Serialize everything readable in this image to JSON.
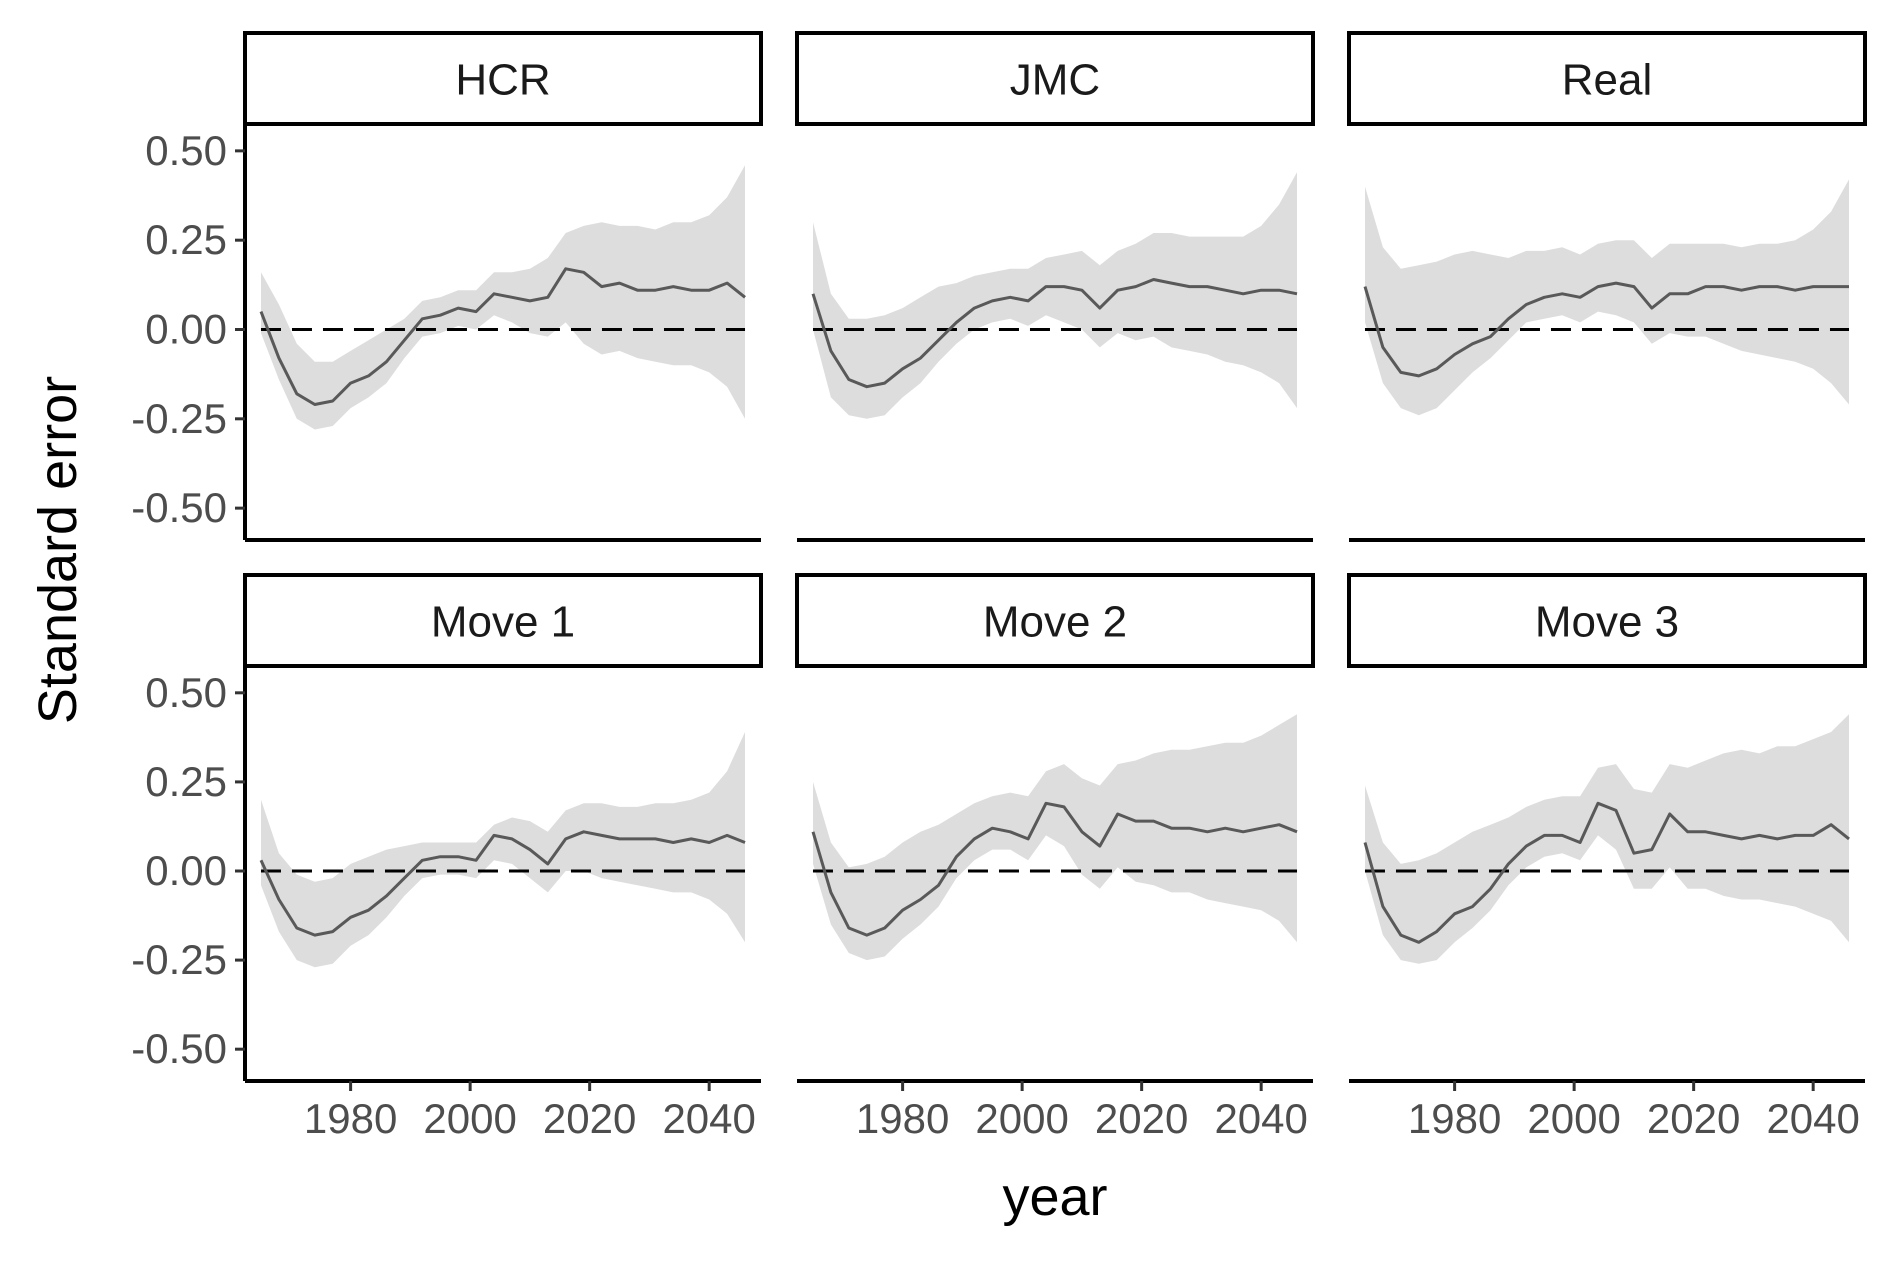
{
  "chart_data": {
    "type": "line",
    "xlabel": "year",
    "ylabel": "Standard error",
    "xlim": [
      1964,
      2047
    ],
    "ylim": [
      -0.55,
      0.55
    ],
    "x_ticks": [
      1980,
      2000,
      2020,
      2040
    ],
    "x_tick_labels": [
      "1980",
      "2000",
      "2020",
      "2040"
    ],
    "y_ticks": [
      0.5,
      0.25,
      0,
      -0.25,
      -0.5
    ],
    "y_tick_labels": [
      "0.50",
      "0.25",
      "0.00",
      "-0.25",
      "-0.50"
    ],
    "reference_line": {
      "y": 0,
      "style": "dashed"
    },
    "grid": false,
    "colors": {
      "line": "#595959",
      "band": "#dddddd",
      "reference": "#000000"
    },
    "facets": [
      {
        "name": "HCR",
        "x": [
          1965,
          1968,
          1971,
          1974,
          1977,
          1980,
          1983,
          1986,
          1989,
          1992,
          1995,
          1998,
          2001,
          2004,
          2007,
          2010,
          2013,
          2016,
          2019,
          2022,
          2025,
          2028,
          2031,
          2034,
          2037,
          2040,
          2043,
          2046
        ],
        "mean": [
          0.05,
          -0.08,
          -0.18,
          -0.21,
          -0.2,
          -0.15,
          -0.13,
          -0.09,
          -0.03,
          0.03,
          0.04,
          0.06,
          0.05,
          0.1,
          0.09,
          0.08,
          0.09,
          0.17,
          0.16,
          0.12,
          0.13,
          0.11,
          0.11,
          0.12,
          0.11,
          0.11,
          0.13,
          0.09
        ],
        "lower": [
          -0.01,
          -0.14,
          -0.25,
          -0.28,
          -0.27,
          -0.22,
          -0.19,
          -0.15,
          -0.08,
          -0.02,
          -0.01,
          0.01,
          0,
          0.04,
          0.02,
          -0.01,
          -0.02,
          0.02,
          -0.04,
          -0.07,
          -0.06,
          -0.08,
          -0.09,
          -0.1,
          -0.1,
          -0.12,
          -0.16,
          -0.25
        ],
        "upper": [
          0.16,
          0.07,
          -0.04,
          -0.09,
          -0.09,
          -0.06,
          -0.03,
          0,
          0.03,
          0.08,
          0.09,
          0.11,
          0.11,
          0.16,
          0.16,
          0.17,
          0.2,
          0.27,
          0.29,
          0.3,
          0.29,
          0.29,
          0.28,
          0.3,
          0.3,
          0.32,
          0.37,
          0.46
        ]
      },
      {
        "name": "JMC",
        "x": [
          1965,
          1968,
          1971,
          1974,
          1977,
          1980,
          1983,
          1986,
          1989,
          1992,
          1995,
          1998,
          2001,
          2004,
          2007,
          2010,
          2013,
          2016,
          2019,
          2022,
          2025,
          2028,
          2031,
          2034,
          2037,
          2040,
          2043,
          2046
        ],
        "mean": [
          0.1,
          -0.06,
          -0.14,
          -0.16,
          -0.15,
          -0.11,
          -0.08,
          -0.03,
          0.02,
          0.06,
          0.08,
          0.09,
          0.08,
          0.12,
          0.12,
          0.11,
          0.06,
          0.11,
          0.12,
          0.14,
          0.13,
          0.12,
          0.12,
          0.11,
          0.1,
          0.11,
          0.11,
          0.1
        ],
        "lower": [
          0,
          -0.19,
          -0.24,
          -0.25,
          -0.24,
          -0.19,
          -0.15,
          -0.09,
          -0.04,
          0,
          0.02,
          0.03,
          0.01,
          0.04,
          0.02,
          0,
          -0.05,
          -0.01,
          -0.03,
          -0.02,
          -0.05,
          -0.06,
          -0.07,
          -0.09,
          -0.1,
          -0.12,
          -0.15,
          -0.22
        ],
        "upper": [
          0.3,
          0.1,
          0.03,
          0.03,
          0.04,
          0.06,
          0.09,
          0.12,
          0.13,
          0.15,
          0.16,
          0.17,
          0.17,
          0.2,
          0.21,
          0.22,
          0.18,
          0.22,
          0.24,
          0.27,
          0.27,
          0.26,
          0.26,
          0.26,
          0.26,
          0.29,
          0.35,
          0.44
        ]
      },
      {
        "name": "Real",
        "x": [
          1965,
          1968,
          1971,
          1974,
          1977,
          1980,
          1983,
          1986,
          1989,
          1992,
          1995,
          1998,
          2001,
          2004,
          2007,
          2010,
          2013,
          2016,
          2019,
          2022,
          2025,
          2028,
          2031,
          2034,
          2037,
          2040,
          2043,
          2046
        ],
        "mean": [
          0.12,
          -0.05,
          -0.12,
          -0.13,
          -0.11,
          -0.07,
          -0.04,
          -0.02,
          0.03,
          0.07,
          0.09,
          0.1,
          0.09,
          0.12,
          0.13,
          0.12,
          0.06,
          0.1,
          0.1,
          0.12,
          0.12,
          0.11,
          0.12,
          0.12,
          0.11,
          0.12,
          0.12,
          0.12
        ],
        "lower": [
          0.02,
          -0.15,
          -0.22,
          -0.24,
          -0.22,
          -0.17,
          -0.12,
          -0.08,
          -0.03,
          0.02,
          0.03,
          0.04,
          0.02,
          0.05,
          0.04,
          0.02,
          -0.04,
          -0.01,
          -0.02,
          -0.02,
          -0.04,
          -0.06,
          -0.07,
          -0.08,
          -0.09,
          -0.11,
          -0.15,
          -0.21
        ],
        "upper": [
          0.4,
          0.23,
          0.17,
          0.18,
          0.19,
          0.21,
          0.22,
          0.21,
          0.2,
          0.22,
          0.22,
          0.23,
          0.21,
          0.24,
          0.25,
          0.25,
          0.2,
          0.24,
          0.24,
          0.24,
          0.24,
          0.23,
          0.24,
          0.24,
          0.25,
          0.28,
          0.33,
          0.42
        ]
      },
      {
        "name": "Move 1",
        "x": [
          1965,
          1968,
          1971,
          1974,
          1977,
          1980,
          1983,
          1986,
          1989,
          1992,
          1995,
          1998,
          2001,
          2004,
          2007,
          2010,
          2013,
          2016,
          2019,
          2022,
          2025,
          2028,
          2031,
          2034,
          2037,
          2040,
          2043,
          2046
        ],
        "mean": [
          0.03,
          -0.08,
          -0.16,
          -0.18,
          -0.17,
          -0.13,
          -0.11,
          -0.07,
          -0.02,
          0.03,
          0.04,
          0.04,
          0.03,
          0.1,
          0.09,
          0.06,
          0.02,
          0.09,
          0.11,
          0.1,
          0.09,
          0.09,
          0.09,
          0.08,
          0.09,
          0.08,
          0.1,
          0.08
        ],
        "lower": [
          -0.04,
          -0.17,
          -0.25,
          -0.27,
          -0.26,
          -0.21,
          -0.18,
          -0.13,
          -0.07,
          -0.02,
          -0.01,
          -0.01,
          -0.02,
          0.03,
          0.02,
          -0.02,
          -0.06,
          0,
          0,
          -0.02,
          -0.03,
          -0.04,
          -0.05,
          -0.06,
          -0.06,
          -0.08,
          -0.12,
          -0.2
        ],
        "upper": [
          0.2,
          0.05,
          -0.01,
          -0.03,
          -0.02,
          0.02,
          0.04,
          0.06,
          0.07,
          0.08,
          0.08,
          0.08,
          0.08,
          0.13,
          0.15,
          0.14,
          0.11,
          0.17,
          0.19,
          0.19,
          0.18,
          0.18,
          0.19,
          0.19,
          0.2,
          0.22,
          0.28,
          0.39
        ]
      },
      {
        "name": "Move 2",
        "x": [
          1965,
          1968,
          1971,
          1974,
          1977,
          1980,
          1983,
          1986,
          1989,
          1992,
          1995,
          1998,
          2001,
          2004,
          2007,
          2010,
          2013,
          2016,
          2019,
          2022,
          2025,
          2028,
          2031,
          2034,
          2037,
          2040,
          2043,
          2046
        ],
        "mean": [
          0.11,
          -0.06,
          -0.16,
          -0.18,
          -0.16,
          -0.11,
          -0.08,
          -0.04,
          0.04,
          0.09,
          0.12,
          0.11,
          0.09,
          0.19,
          0.18,
          0.11,
          0.07,
          0.16,
          0.14,
          0.14,
          0.12,
          0.12,
          0.11,
          0.12,
          0.11,
          0.12,
          0.13,
          0.11
        ],
        "lower": [
          0.02,
          -0.15,
          -0.23,
          -0.25,
          -0.24,
          -0.19,
          -0.15,
          -0.1,
          -0.02,
          0.03,
          0.06,
          0.06,
          0.03,
          0.1,
          0.07,
          -0.01,
          -0.05,
          0.01,
          -0.03,
          -0.04,
          -0.06,
          -0.06,
          -0.08,
          -0.09,
          -0.1,
          -0.11,
          -0.14,
          -0.2
        ],
        "upper": [
          0.25,
          0.08,
          0.01,
          0.02,
          0.04,
          0.08,
          0.11,
          0.13,
          0.16,
          0.19,
          0.21,
          0.22,
          0.21,
          0.28,
          0.3,
          0.26,
          0.24,
          0.3,
          0.31,
          0.33,
          0.34,
          0.34,
          0.35,
          0.36,
          0.36,
          0.38,
          0.41,
          0.44
        ]
      },
      {
        "name": "Move 3",
        "x": [
          1965,
          1968,
          1971,
          1974,
          1977,
          1980,
          1983,
          1986,
          1989,
          1992,
          1995,
          1998,
          2001,
          2004,
          2007,
          2010,
          2013,
          2016,
          2019,
          2022,
          2025,
          2028,
          2031,
          2034,
          2037,
          2040,
          2043,
          2046
        ],
        "mean": [
          0.08,
          -0.1,
          -0.18,
          -0.2,
          -0.17,
          -0.12,
          -0.1,
          -0.05,
          0.02,
          0.07,
          0.1,
          0.1,
          0.08,
          0.19,
          0.17,
          0.05,
          0.06,
          0.16,
          0.11,
          0.11,
          0.1,
          0.09,
          0.1,
          0.09,
          0.1,
          0.1,
          0.13,
          0.09
        ],
        "lower": [
          0,
          -0.18,
          -0.25,
          -0.26,
          -0.25,
          -0.2,
          -0.16,
          -0.11,
          -0.04,
          0.01,
          0.04,
          0.05,
          0.03,
          0.1,
          0.06,
          -0.05,
          -0.05,
          0.01,
          -0.05,
          -0.05,
          -0.07,
          -0.08,
          -0.08,
          -0.09,
          -0.1,
          -0.12,
          -0.14,
          -0.2
        ],
        "upper": [
          0.24,
          0.08,
          0.02,
          0.03,
          0.05,
          0.08,
          0.11,
          0.13,
          0.15,
          0.18,
          0.2,
          0.21,
          0.21,
          0.29,
          0.3,
          0.23,
          0.22,
          0.3,
          0.29,
          0.31,
          0.33,
          0.34,
          0.33,
          0.35,
          0.35,
          0.37,
          0.39,
          0.44
        ]
      }
    ]
  }
}
